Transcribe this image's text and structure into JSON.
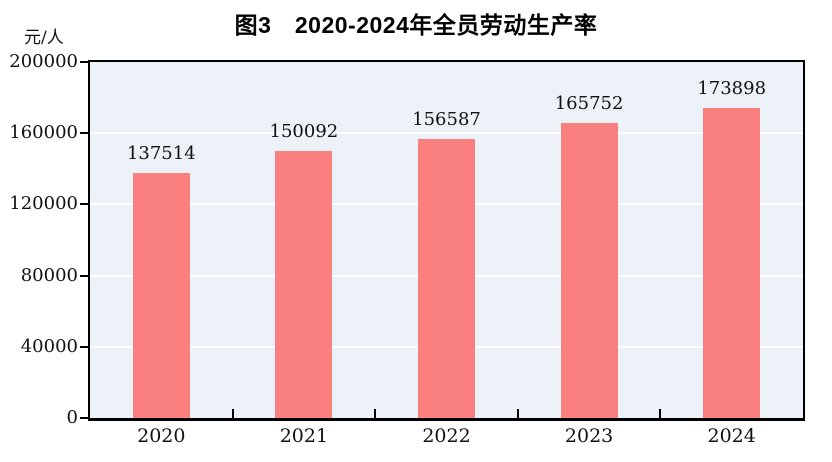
{
  "figure": {
    "title": "图3　2020-2024年全员劳动生产率",
    "unit_label": "元/人"
  },
  "chart_data": {
    "type": "bar",
    "title": "图3　2020-2024年全员劳动生产率",
    "unit_label": "元/人",
    "categories": [
      "2020",
      "2021",
      "2022",
      "2023",
      "2024"
    ],
    "values": [
      137514,
      150092,
      156587,
      165752,
      173898
    ],
    "data_labels": [
      "137514",
      "150092",
      "156587",
      "165752",
      "173898"
    ],
    "xlabel": "",
    "ylabel": "元/人",
    "ylim": [
      0,
      200000
    ],
    "y_ticks": [
      0,
      40000,
      80000,
      120000,
      160000,
      200000
    ],
    "grid": true,
    "legend_position": "none",
    "colors": {
      "bar": "#fa8080",
      "plot_background": "#ecf2f7",
      "grid": "#ffffff",
      "axis": "#000000",
      "text": "#111111"
    }
  }
}
